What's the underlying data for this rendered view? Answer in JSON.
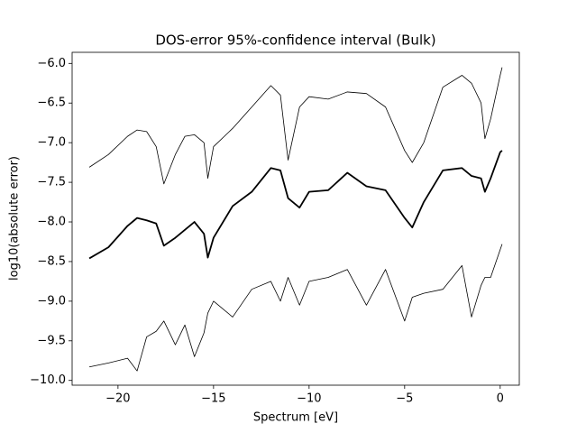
{
  "chart_data": {
    "type": "line",
    "title": "DOS-error 95%-confidence interval (Bulk)",
    "xlabel": "Spectrum [eV]",
    "ylabel": "log10(absolute error)",
    "x": [
      -21.5,
      -20.5,
      -19.5,
      -19,
      -18.5,
      -18,
      -17.6,
      -17,
      -16.5,
      -16,
      -15.5,
      -15.3,
      -15,
      -14,
      -13,
      -12,
      -11.5,
      -11.1,
      -10.5,
      -10,
      -9,
      -8,
      -7,
      -6,
      -5,
      -4.6,
      -4,
      -3,
      -2,
      -1.5,
      -1,
      -0.8,
      -0.5,
      0,
      0.1
    ],
    "series": [
      {
        "color": "#000000",
        "linewidth": 0.8,
        "values": [
          -7.31,
          -7.15,
          -6.92,
          -6.84,
          -6.86,
          -7.05,
          -7.52,
          -7.15,
          -6.92,
          -6.9,
          -7.0,
          -7.45,
          -7.05,
          -6.82,
          -6.55,
          -6.28,
          -6.4,
          -7.22,
          -6.55,
          -6.42,
          -6.45,
          -6.36,
          -6.38,
          -6.55,
          -7.1,
          -7.25,
          -7.0,
          -6.3,
          -6.15,
          -6.25,
          -6.5,
          -6.95,
          -6.7,
          -6.15,
          -6.05
        ]
      },
      {
        "color": "#000000",
        "linewidth": 1.8,
        "values": [
          -8.46,
          -8.32,
          -8.05,
          -7.95,
          -7.98,
          -8.02,
          -8.3,
          -8.2,
          -8.1,
          -8.0,
          -8.15,
          -8.45,
          -8.2,
          -7.8,
          -7.62,
          -7.32,
          -7.35,
          -7.7,
          -7.82,
          -7.62,
          -7.6,
          -7.38,
          -7.55,
          -7.6,
          -7.95,
          -8.07,
          -7.75,
          -7.35,
          -7.32,
          -7.42,
          -7.45,
          -7.62,
          -7.45,
          -7.12,
          -7.1
        ]
      },
      {
        "color": "#000000",
        "linewidth": 0.8,
        "values": [
          -9.83,
          -9.78,
          -9.72,
          -9.88,
          -9.45,
          -9.38,
          -9.25,
          -9.55,
          -9.3,
          -9.7,
          -9.4,
          -9.15,
          -9.0,
          -9.2,
          -8.85,
          -8.75,
          -9.0,
          -8.7,
          -9.05,
          -8.75,
          -8.7,
          -8.6,
          -9.05,
          -8.6,
          -9.25,
          -8.95,
          -8.9,
          -8.85,
          -8.55,
          -9.2,
          -8.8,
          -8.7,
          -8.7,
          -8.35,
          -8.28
        ]
      }
    ],
    "xlim": [
      -22.4,
      1.0
    ],
    "ylim": [
      -10.06,
      -5.86
    ],
    "xticks": [
      {
        "value": -20,
        "label": "−20"
      },
      {
        "value": -15,
        "label": "−15"
      },
      {
        "value": -10,
        "label": "−10"
      },
      {
        "value": -5,
        "label": "−5"
      },
      0
    ],
    "yticks": [
      {
        "value": -10,
        "label": "−10.0"
      },
      {
        "value": -9.5,
        "label": "−9.5"
      },
      {
        "value": -9,
        "label": "−9.0"
      },
      {
        "value": -8.5,
        "label": "−8.5"
      },
      {
        "value": -8,
        "label": "−8.0"
      },
      {
        "value": -7.5,
        "label": "−7.5"
      },
      {
        "value": -7,
        "label": "−7.0"
      },
      {
        "value": -6.5,
        "label": "−6.5"
      },
      {
        "value": -6,
        "label": "−6.0"
      }
    ],
    "grid": false
  }
}
